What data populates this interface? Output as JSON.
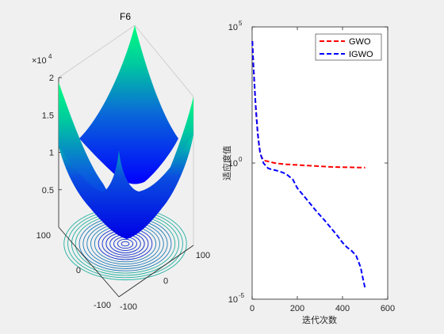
{
  "chart_data": [
    {
      "type": "surface",
      "title": "F6",
      "z_exponent_label": "×10",
      "z_exponent_power": "4",
      "zticks": [
        "0.5",
        "1",
        "1.5",
        "2"
      ],
      "zlim": [
        0,
        20000
      ],
      "xticks": [
        "-100",
        "0",
        "100"
      ],
      "yticks": [
        "-100",
        "0",
        "100"
      ],
      "xlim": [
        -100,
        100
      ],
      "ylim": [
        -100,
        100
      ],
      "colormap": [
        "#0000ff",
        "#00c8a0",
        "#00ff80"
      ],
      "contour_projection": true
    },
    {
      "type": "line",
      "ylabel": "适应度值",
      "xlabel": "迭代次数",
      "xlim": [
        0,
        600
      ],
      "xticks": [
        "0",
        "200",
        "400",
        "600"
      ],
      "ylim": [
        1e-05,
        100000.0
      ],
      "yscale": "log",
      "ytick_base": "10",
      "ytick_powers": [
        "5",
        "0",
        "-5"
      ],
      "legend_position": "top-right",
      "series": [
        {
          "name": "GWO",
          "color": "#ff0000",
          "style": "dashed",
          "x": [
            1,
            5,
            10,
            15,
            20,
            25,
            30,
            35,
            40,
            45,
            50,
            60,
            70,
            80,
            100,
            120,
            150,
            200,
            250,
            300,
            350,
            400,
            450,
            500
          ],
          "y": [
            30000,
            5000,
            800,
            150,
            40,
            12,
            5,
            2.5,
            1.8,
            1.5,
            1.3,
            1.2,
            1.15,
            1.1,
            1.0,
            0.95,
            0.9,
            0.85,
            0.8,
            0.76,
            0.72,
            0.7,
            0.69,
            0.68
          ]
        },
        {
          "name": "IGWO",
          "color": "#0000ff",
          "style": "dashed",
          "x": [
            1,
            5,
            10,
            15,
            20,
            25,
            30,
            35,
            40,
            45,
            50,
            60,
            70,
            80,
            100,
            120,
            150,
            180,
            200,
            230,
            260,
            290,
            320,
            350,
            380,
            400,
            420,
            440,
            460,
            480,
            490,
            500
          ],
          "y": [
            30000,
            5000,
            800,
            150,
            40,
            12,
            5,
            2.5,
            1.8,
            1.4,
            1.0,
            0.8,
            0.65,
            0.6,
            0.55,
            0.5,
            0.4,
            0.25,
            0.12,
            0.06,
            0.03,
            0.015,
            0.008,
            0.004,
            0.002,
            0.0012,
            0.0008,
            0.0006,
            0.0004,
            0.00015,
            6e-05,
            2.5e-05
          ]
        }
      ]
    }
  ]
}
